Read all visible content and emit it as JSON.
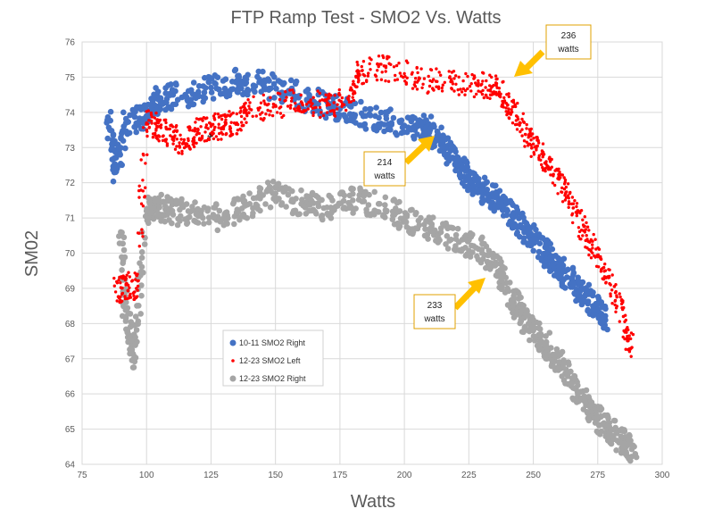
{
  "chart_data": {
    "type": "scatter",
    "title": "FTP Ramp Test - SMO2 Vs. Watts",
    "xlabel": "Watts",
    "ylabel": "SM02",
    "xlim": [
      75,
      300
    ],
    "ylim": [
      64,
      76
    ],
    "x_ticks": [
      "75",
      "100",
      "125",
      "150",
      "175",
      "200",
      "225",
      "250",
      "275",
      "300"
    ],
    "y_ticks": [
      "64",
      "65",
      "66",
      "67",
      "68",
      "69",
      "70",
      "71",
      "72",
      "73",
      "74",
      "75",
      "76"
    ],
    "grid": true,
    "legend_position": "lower-left inside",
    "series": [
      {
        "name": "10-11 SMO2 Right",
        "color": "#4472C4",
        "marker": "large",
        "trend": [
          [
            85,
            73.8
          ],
          [
            88,
            72.3
          ],
          [
            92,
            73.7
          ],
          [
            100,
            73.9
          ],
          [
            105,
            74.4
          ],
          [
            115,
            74.5
          ],
          [
            125,
            74.7
          ],
          [
            135,
            74.9
          ],
          [
            145,
            74.8
          ],
          [
            155,
            74.6
          ],
          [
            165,
            74.3
          ],
          [
            175,
            74.1
          ],
          [
            185,
            73.9
          ],
          [
            195,
            73.7
          ],
          [
            205,
            73.6
          ],
          [
            210,
            73.5
          ],
          [
            215,
            73.1
          ],
          [
            220,
            72.6
          ],
          [
            225,
            72.1
          ],
          [
            230,
            71.8
          ],
          [
            235,
            71.6
          ],
          [
            240,
            71.2
          ],
          [
            245,
            70.8
          ],
          [
            250,
            70.4
          ],
          [
            255,
            70.0
          ],
          [
            260,
            69.6
          ],
          [
            265,
            69.2
          ],
          [
            270,
            68.8
          ],
          [
            275,
            68.4
          ],
          [
            278,
            68.1
          ]
        ]
      },
      {
        "name": "12-23 SMO2 Left",
        "color": "#FF0000",
        "marker": "small",
        "trend": [
          [
            88,
            68.9
          ],
          [
            92,
            69.1
          ],
          [
            96,
            69.0
          ],
          [
            100,
            73.7
          ],
          [
            105,
            73.6
          ],
          [
            110,
            73.3
          ],
          [
            115,
            73.1
          ],
          [
            120,
            73.5
          ],
          [
            125,
            73.6
          ],
          [
            130,
            73.6
          ],
          [
            135,
            73.7
          ],
          [
            140,
            74.1
          ],
          [
            150,
            74.2
          ],
          [
            160,
            74.3
          ],
          [
            170,
            74.2
          ],
          [
            178,
            74.4
          ],
          [
            182,
            75.1
          ],
          [
            190,
            75.3
          ],
          [
            200,
            75.1
          ],
          [
            210,
            74.9
          ],
          [
            220,
            74.8
          ],
          [
            230,
            74.8
          ],
          [
            236,
            74.7
          ],
          [
            240,
            74.2
          ],
          [
            245,
            73.7
          ],
          [
            250,
            73.1
          ],
          [
            255,
            72.6
          ],
          [
            260,
            72.1
          ],
          [
            265,
            71.4
          ],
          [
            270,
            70.6
          ],
          [
            275,
            69.9
          ],
          [
            280,
            69.1
          ],
          [
            285,
            68.2
          ],
          [
            288,
            67.3
          ]
        ]
      },
      {
        "name": "12-23 SMO2 Right",
        "color": "#A5A5A5",
        "marker": "large",
        "trend": [
          [
            90,
            70.6
          ],
          [
            92,
            68.2
          ],
          [
            95,
            67.0
          ],
          [
            100,
            71.2
          ],
          [
            105,
            71.3
          ],
          [
            110,
            71.2
          ],
          [
            120,
            71.1
          ],
          [
            130,
            71.0
          ],
          [
            140,
            71.4
          ],
          [
            150,
            71.7
          ],
          [
            160,
            71.4
          ],
          [
            170,
            71.3
          ],
          [
            180,
            71.5
          ],
          [
            190,
            71.4
          ],
          [
            200,
            71.0
          ],
          [
            210,
            70.7
          ],
          [
            220,
            70.4
          ],
          [
            230,
            70.1
          ],
          [
            235,
            69.7
          ],
          [
            240,
            69.0
          ],
          [
            245,
            68.3
          ],
          [
            250,
            67.8
          ],
          [
            255,
            67.4
          ],
          [
            260,
            66.9
          ],
          [
            265,
            66.3
          ],
          [
            270,
            65.8
          ],
          [
            275,
            65.3
          ],
          [
            280,
            65.0
          ],
          [
            285,
            64.6
          ],
          [
            290,
            64.2
          ]
        ]
      }
    ],
    "annotations": [
      {
        "line1": "236",
        "line2": "watts"
      },
      {
        "line1": "214",
        "line2": "watts"
      },
      {
        "line1": "233",
        "line2": "watts"
      }
    ]
  }
}
